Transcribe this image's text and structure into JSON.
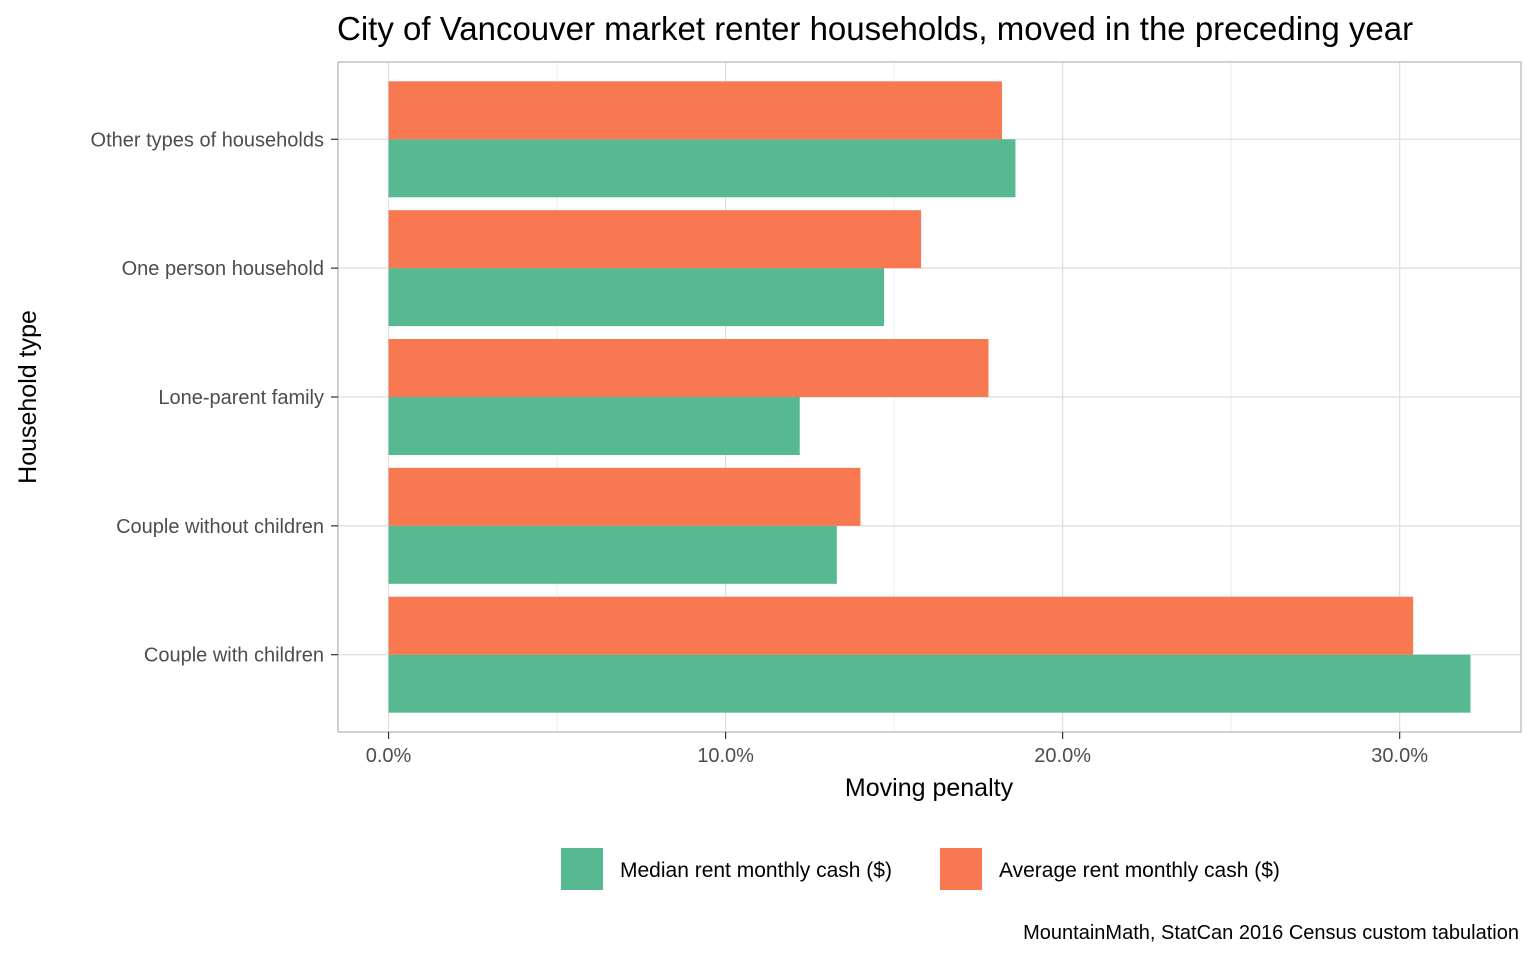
{
  "chart_data": {
    "type": "bar",
    "orientation": "horizontal",
    "title": "City of Vancouver market renter households, moved in the preceding year",
    "xlabel": "Moving penalty",
    "ylabel": "Household type",
    "caption": "MountainMath, StatCan 2016 Census custom tabulation",
    "categories": [
      "Couple with children",
      "Couple without children",
      "Lone-parent family",
      "One person household",
      "Other types of households"
    ],
    "series": [
      {
        "name": "Median rent monthly cash ($)",
        "color": "#56b991",
        "values": [
          32.1,
          13.3,
          12.2,
          14.7,
          18.6
        ]
      },
      {
        "name": "Average rent monthly cash ($)",
        "color": "#f87851",
        "values": [
          30.4,
          14.0,
          17.8,
          15.8,
          18.2
        ]
      }
    ],
    "xlim": [
      -1.5,
      33.6
    ],
    "x_ticks": [
      0,
      10,
      20,
      30
    ],
    "x_tick_labels": [
      "0.0%",
      "10.0%",
      "20.0%",
      "30.0%"
    ],
    "grid": true,
    "legend_position": "bottom"
  }
}
